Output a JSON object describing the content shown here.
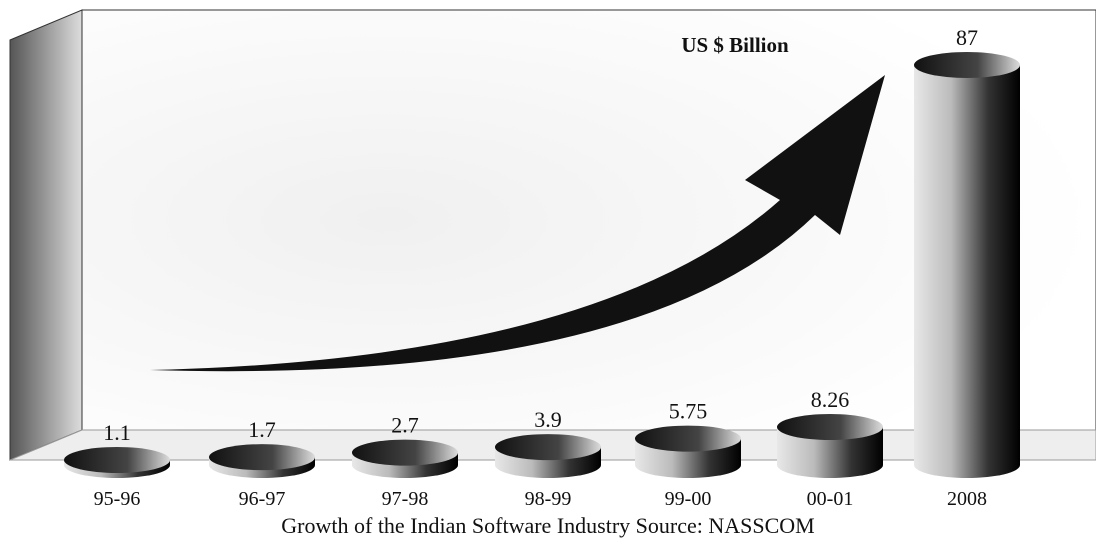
{
  "chart_data": {
    "type": "bar",
    "unit_label": "US $ Billion",
    "caption": "Growth of the Indian Software Industry Source: NASSCOM",
    "categories": [
      "95-96",
      "96-97",
      "97-98",
      "98-99",
      "99-00",
      "00-01",
      "2008"
    ],
    "values": [
      1.1,
      1.7,
      2.7,
      3.9,
      5.75,
      8.26,
      87
    ]
  }
}
